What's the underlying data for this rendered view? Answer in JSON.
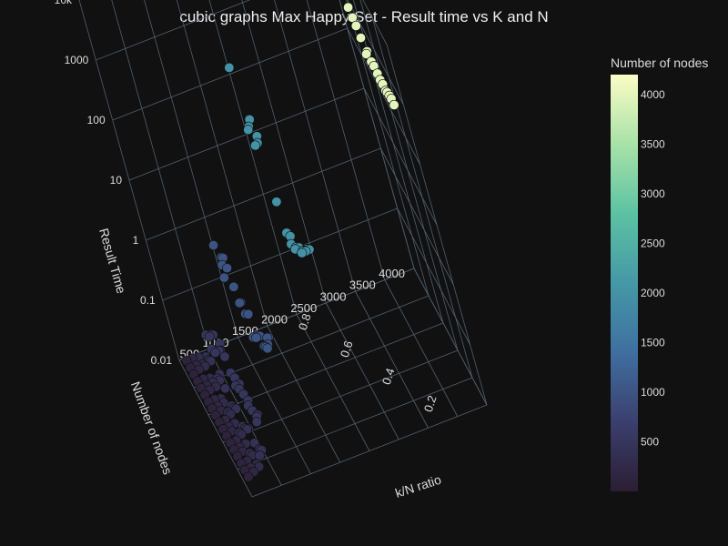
{
  "chart_data": {
    "type": "scatter",
    "title": "cubic graphs Max Happy Set - Result time vs K and N",
    "xlabel": "k/N ratio",
    "ylabel": "Number of nodes",
    "zlabel": "Result Time",
    "x_ticks": [
      "0.2",
      "0.4",
      "0.6",
      "0.8"
    ],
    "y_ticks": [
      "500",
      "1000",
      "1500",
      "2000",
      "2500",
      "3000",
      "3500",
      "4000"
    ],
    "z_ticks": [
      "0.01",
      "0.1",
      "1",
      "10",
      "100",
      "1000",
      "10k"
    ],
    "z_scale": "log",
    "xlim": [
      0,
      1
    ],
    "ylim": [
      0,
      4000
    ],
    "zlim": [
      0.01,
      10000
    ],
    "colorbar": {
      "title": "Number of nodes",
      "ticks": [
        "500",
        "1000",
        "1500",
        "2000",
        "2500",
        "3000",
        "3500",
        "4000"
      ],
      "range": [
        0,
        4200
      ],
      "colors": [
        "#2b1e33",
        "#3b3f6e",
        "#3f6fa0",
        "#4598a6",
        "#5cc2a3",
        "#a8e2a8",
        "#fbfcc5"
      ]
    },
    "background": "#111111",
    "gridlines": true,
    "series": [
      {
        "n": 4000,
        "x": [
          0.99,
          0.95,
          0.92,
          0.88,
          0.85,
          0.81,
          0.77,
          0.73,
          0.69,
          0.66,
          0.62,
          0.58,
          0.54,
          0.5,
          0.47,
          0.43,
          0.4,
          0.37,
          0.33,
          0.3,
          0.27
        ],
        "z": [
          900,
          1400,
          700,
          1100,
          1300,
          600,
          500,
          450,
          350,
          220,
          300,
          250,
          260,
          240,
          220,
          230,
          210,
          230,
          250,
          260,
          240
        ]
      },
      {
        "n": 2000,
        "x": [
          0.97,
          0.92,
          0.88,
          0.84,
          0.8,
          0.76,
          0.72,
          0.68,
          0.64,
          0.6,
          0.56,
          0.52,
          0.48,
          0.44,
          0.4,
          0.36,
          0.32,
          0.28,
          0.24,
          0.2,
          0.16,
          0.12
        ],
        "z": [
          150,
          18,
          25,
          15,
          50,
          25,
          40,
          4,
          1.5,
          1.2,
          2,
          1.5,
          2,
          2.5,
          3,
          3,
          4,
          5,
          6,
          8,
          10,
          12
        ]
      },
      {
        "n": 1000,
        "x": [
          0.97,
          0.92,
          0.88,
          0.84,
          0.8,
          0.76,
          0.72,
          0.68,
          0.64,
          0.6,
          0.56,
          0.52,
          0.48,
          0.44,
          0.4,
          0.36,
          0.32,
          0.28,
          0.24,
          0.2,
          0.16,
          0.12
        ],
        "z": [
          0.4,
          0.15,
          0.3,
          0.5,
          0.6,
          0.5,
          0.3,
          0.2,
          0.25,
          0.2,
          0.1,
          0.3,
          0.15,
          0.2,
          0.25,
          0.3,
          0.25,
          0.3,
          0.35,
          0.5,
          0.8,
          1.0
        ]
      },
      {
        "n": 500,
        "x": [
          0.97,
          0.92,
          0.88,
          0.84,
          0.8,
          0.76,
          0.72,
          0.68,
          0.64,
          0.6,
          0.56,
          0.52,
          0.48,
          0.44,
          0.4,
          0.36,
          0.32,
          0.28,
          0.24,
          0.2,
          0.16,
          0.12
        ],
        "z": [
          0.02,
          0.015,
          0.03,
          0.02,
          0.05,
          0.06,
          0.04,
          0.05,
          0.08,
          0.06,
          0.04,
          0.03,
          0.05,
          0.04,
          0.06,
          0.05,
          0.04,
          0.06,
          0.05,
          0.04,
          0.06,
          0.08
        ]
      },
      {
        "n": 400,
        "x": [
          0.96,
          0.9,
          0.85,
          0.8,
          0.75,
          0.7,
          0.65,
          0.6,
          0.55,
          0.5,
          0.45,
          0.4,
          0.35,
          0.3,
          0.25,
          0.2,
          0.15,
          0.1
        ],
        "z": [
          0.01,
          0.012,
          0.015,
          0.01,
          0.012,
          0.02,
          0.015,
          0.01,
          0.012,
          0.015,
          0.01,
          0.012,
          0.015,
          0.02,
          0.015,
          0.012,
          0.02,
          0.025
        ]
      },
      {
        "n": 300,
        "x": [
          0.97,
          0.92,
          0.87,
          0.82,
          0.77,
          0.72,
          0.67,
          0.62,
          0.57,
          0.52,
          0.47,
          0.42,
          0.37,
          0.32,
          0.27,
          0.22,
          0.17,
          0.12
        ],
        "z": [
          0.01,
          0.01,
          0.012,
          0.01,
          0.011,
          0.012,
          0.01,
          0.011,
          0.01,
          0.012,
          0.011,
          0.01,
          0.012,
          0.011,
          0.01,
          0.012,
          0.011,
          0.013
        ]
      },
      {
        "n": 200,
        "x": [
          0.98,
          0.93,
          0.88,
          0.83,
          0.78,
          0.73,
          0.68,
          0.63,
          0.58,
          0.53,
          0.48,
          0.43,
          0.38,
          0.33,
          0.28,
          0.23,
          0.18,
          0.13
        ],
        "z": [
          0.01,
          0.01,
          0.011,
          0.01,
          0.01,
          0.011,
          0.01,
          0.01,
          0.011,
          0.01,
          0.01,
          0.011,
          0.01,
          0.01,
          0.011,
          0.01,
          0.01,
          0.011
        ]
      },
      {
        "n": 100,
        "x": [
          0.98,
          0.93,
          0.88,
          0.83,
          0.78,
          0.73,
          0.68,
          0.63,
          0.58,
          0.53,
          0.48,
          0.43,
          0.38,
          0.33,
          0.28,
          0.23,
          0.18,
          0.13
        ],
        "z": [
          0.01,
          0.01,
          0.01,
          0.01,
          0.01,
          0.01,
          0.01,
          0.01,
          0.01,
          0.01,
          0.01,
          0.01,
          0.01,
          0.01,
          0.01,
          0.01,
          0.01,
          0.01
        ]
      }
    ]
  }
}
